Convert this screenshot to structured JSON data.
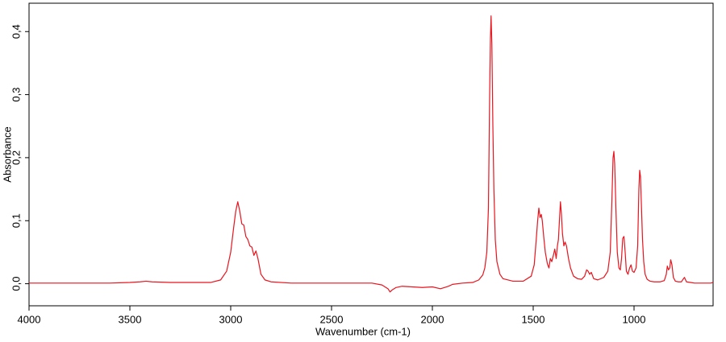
{
  "chart_data": {
    "type": "line",
    "xlabel": "Wavenumber (cm-1)",
    "ylabel": "Absorbance",
    "x": [
      4000,
      3800,
      3600,
      3500,
      3450,
      3420,
      3390,
      3300,
      3200,
      3100,
      3050,
      3020,
      3000,
      2985,
      2975,
      2965,
      2955,
      2945,
      2935,
      2925,
      2915,
      2905,
      2895,
      2885,
      2875,
      2865,
      2850,
      2830,
      2800,
      2700,
      2500,
      2300,
      2250,
      2220,
      2210,
      2200,
      2180,
      2150,
      2100,
      2050,
      2000,
      1960,
      1940,
      1920,
      1900,
      1850,
      1800,
      1770,
      1750,
      1740,
      1730,
      1722,
      1716,
      1712,
      1709,
      1705,
      1700,
      1695,
      1688,
      1680,
      1665,
      1650,
      1600,
      1550,
      1510,
      1495,
      1485,
      1478,
      1472,
      1466,
      1460,
      1455,
      1448,
      1440,
      1430,
      1422,
      1415,
      1408,
      1400,
      1393,
      1386,
      1380,
      1375,
      1370,
      1365,
      1360,
      1355,
      1348,
      1342,
      1335,
      1325,
      1315,
      1300,
      1280,
      1260,
      1245,
      1235,
      1228,
      1220,
      1212,
      1200,
      1180,
      1150,
      1130,
      1118,
      1110,
      1104,
      1100,
      1096,
      1090,
      1083,
      1075,
      1068,
      1062,
      1056,
      1050,
      1044,
      1038,
      1030,
      1022,
      1015,
      1008,
      1000,
      990,
      982,
      976,
      972,
      968,
      963,
      958,
      952,
      945,
      935,
      920,
      900,
      870,
      850,
      840,
      835,
      829,
      823,
      818,
      812,
      805,
      795,
      780,
      765,
      757,
      750,
      740,
      720,
      700,
      660,
      620,
      608
    ],
    "series": [
      {
        "name": "Absorbance",
        "color": "#e8141e",
        "values": [
          0.001,
          0.001,
          0.001,
          0.002,
          0.003,
          0.004,
          0.003,
          0.002,
          0.002,
          0.002,
          0.006,
          0.02,
          0.05,
          0.09,
          0.115,
          0.13,
          0.115,
          0.095,
          0.093,
          0.075,
          0.07,
          0.06,
          0.058,
          0.045,
          0.052,
          0.04,
          0.015,
          0.006,
          0.003,
          0.001,
          0.001,
          0.001,
          -0.002,
          -0.008,
          -0.013,
          -0.01,
          -0.006,
          -0.004,
          -0.005,
          -0.006,
          -0.005,
          -0.008,
          -0.006,
          -0.004,
          -0.001,
          0.001,
          0.002,
          0.006,
          0.014,
          0.025,
          0.05,
          0.12,
          0.3,
          0.39,
          0.425,
          0.38,
          0.25,
          0.15,
          0.07,
          0.035,
          0.015,
          0.008,
          0.004,
          0.004,
          0.012,
          0.03,
          0.07,
          0.1,
          0.12,
          0.105,
          0.11,
          0.1,
          0.075,
          0.05,
          0.032,
          0.025,
          0.04,
          0.035,
          0.045,
          0.055,
          0.04,
          0.06,
          0.07,
          0.1,
          0.13,
          0.11,
          0.08,
          0.06,
          0.066,
          0.06,
          0.04,
          0.025,
          0.012,
          0.008,
          0.007,
          0.012,
          0.022,
          0.02,
          0.015,
          0.018,
          0.008,
          0.006,
          0.01,
          0.02,
          0.05,
          0.13,
          0.2,
          0.21,
          0.19,
          0.12,
          0.05,
          0.025,
          0.022,
          0.04,
          0.072,
          0.075,
          0.05,
          0.02,
          0.015,
          0.025,
          0.03,
          0.02,
          0.018,
          0.025,
          0.06,
          0.15,
          0.18,
          0.17,
          0.12,
          0.07,
          0.035,
          0.015,
          0.007,
          0.004,
          0.003,
          0.003,
          0.005,
          0.015,
          0.028,
          0.022,
          0.025,
          0.038,
          0.03,
          0.01,
          0.004,
          0.003,
          0.003,
          0.007,
          0.01,
          0.003,
          0.002,
          0.001,
          0.001,
          0.001,
          0.002
        ]
      }
    ],
    "xlim": [
      4000,
      608
    ],
    "xticks": [
      4000,
      3500,
      3000,
      2500,
      2000,
      1500,
      1000
    ],
    "ylim": [
      -0.035,
      0.445
    ],
    "yticks": [
      {
        "value": 0,
        "label": "0,0"
      },
      {
        "value": 0.1,
        "label": "0,1"
      },
      {
        "value": 0.2,
        "label": "0,2"
      },
      {
        "value": 0.3,
        "label": "0,3"
      },
      {
        "value": 0.4,
        "label": "0,4"
      }
    ]
  }
}
